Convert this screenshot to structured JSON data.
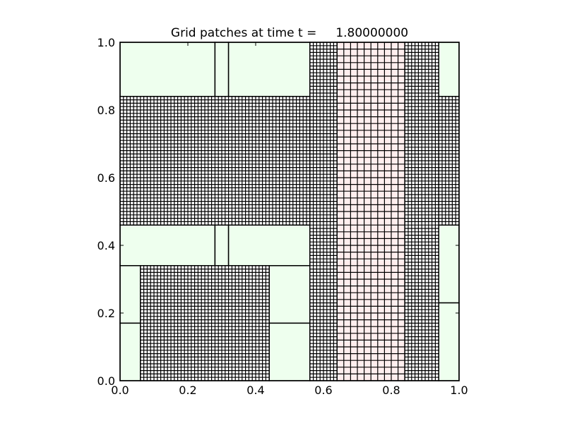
{
  "chart_data": {
    "type": "patches",
    "title": "Grid patches at time t =     1.80000000",
    "xlim": [
      0,
      1
    ],
    "ylim": [
      0,
      1
    ],
    "xticks": [
      {
        "value": 0,
        "label": "0.0"
      },
      {
        "value": 0.2,
        "label": "0.2"
      },
      {
        "value": 0.4,
        "label": "0.4"
      },
      {
        "value": 0.6,
        "label": "0.6"
      },
      {
        "value": 0.8,
        "label": "0.8"
      },
      {
        "value": 1,
        "label": "1.0"
      }
    ],
    "yticks": [
      {
        "value": 0,
        "label": "0.0"
      },
      {
        "value": 0.2,
        "label": "0.2"
      },
      {
        "value": 0.4,
        "label": "0.4"
      },
      {
        "value": 0.6,
        "label": "0.6"
      },
      {
        "value": 0.8,
        "label": "0.8"
      },
      {
        "value": 1,
        "label": "1.0"
      }
    ],
    "levels": [
      {
        "color": "#eeffee"
      },
      {
        "color": "#ffeeee",
        "dx": 0.02
      },
      {
        "color": "#ffffff",
        "dx": 0.01
      }
    ],
    "patches": [
      {
        "x": [
          0,
          0.28
        ],
        "y": [
          0.84,
          1
        ],
        "level": 0
      },
      {
        "x": [
          0.28,
          0.32
        ],
        "y": [
          0.84,
          1
        ],
        "level": 0
      },
      {
        "x": [
          0.32,
          0.56
        ],
        "y": [
          0.84,
          1
        ],
        "level": 0
      },
      {
        "x": [
          0.94,
          1
        ],
        "y": [
          0.84,
          1
        ],
        "level": 0
      },
      {
        "x": [
          0,
          0.28
        ],
        "y": [
          0.34,
          0.46
        ],
        "level": 0
      },
      {
        "x": [
          0.28,
          0.32
        ],
        "y": [
          0.34,
          0.46
        ],
        "level": 0
      },
      {
        "x": [
          0.32,
          0.56
        ],
        "y": [
          0.34,
          0.46
        ],
        "level": 0
      },
      {
        "x": [
          0.94,
          1
        ],
        "y": [
          0.23,
          0.46
        ],
        "level": 0
      },
      {
        "x": [
          0.94,
          1
        ],
        "y": [
          0,
          0.23
        ],
        "level": 0
      },
      {
        "x": [
          0,
          0.06
        ],
        "y": [
          0.17,
          0.34
        ],
        "level": 0
      },
      {
        "x": [
          0,
          0.06
        ],
        "y": [
          0,
          0.17
        ],
        "level": 0
      },
      {
        "x": [
          0.44,
          0.56
        ],
        "y": [
          0.17,
          0.34
        ],
        "level": 0
      },
      {
        "x": [
          0.44,
          0.56
        ],
        "y": [
          0,
          0.17
        ],
        "level": 0
      },
      {
        "x": [
          0.64,
          0.84
        ],
        "y": [
          0,
          1
        ],
        "level": 1
      },
      {
        "x": [
          0,
          0.56
        ],
        "y": [
          0.46,
          0.84
        ],
        "level": 2
      },
      {
        "x": [
          0.94,
          1
        ],
        "y": [
          0.46,
          0.84
        ],
        "level": 2
      },
      {
        "x": [
          0.56,
          0.64
        ],
        "y": [
          0,
          1
        ],
        "level": 2
      },
      {
        "x": [
          0.84,
          0.94
        ],
        "y": [
          0,
          1
        ],
        "level": 2
      },
      {
        "x": [
          0.06,
          0.44
        ],
        "y": [
          0,
          0.34
        ],
        "level": 2
      }
    ]
  }
}
